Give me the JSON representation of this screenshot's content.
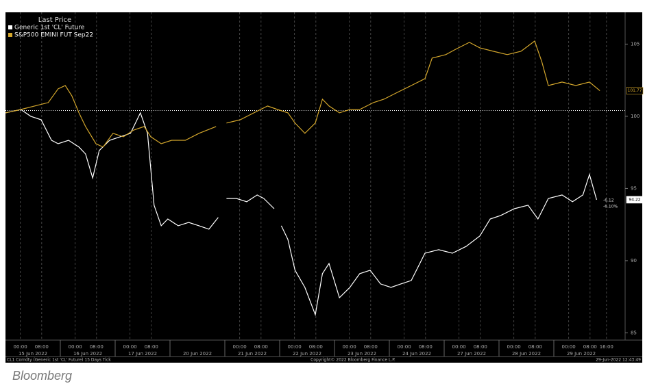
{
  "chart_data": {
    "type": "line",
    "legend_title": "Last Price",
    "series": [
      {
        "name": "Generic 1st 'CL' Future",
        "color": "#ffffff",
        "x": [
          0,
          0.28,
          0.46,
          0.65,
          0.84,
          0.96,
          1.15,
          1.34,
          1.46,
          1.59,
          1.71,
          1.9,
          2.09,
          2.28,
          2.46,
          2.59,
          2.71,
          2.84,
          2.96,
          3.15,
          3.34,
          3.53,
          3.71,
          3.88,
          3.95,
          4.03,
          4.21,
          4.4,
          4.59,
          4.71,
          4.9,
          4.96,
          5.03,
          5.15,
          5.28,
          5.46,
          5.65,
          5.78,
          5.9,
          6.09,
          6.28,
          6.46,
          6.65,
          6.84,
          7.03,
          7.21,
          7.4,
          7.65,
          7.9,
          8.15,
          8.4,
          8.65,
          8.84,
          9.03,
          9.28,
          9.53,
          9.71,
          9.9,
          10.15,
          10.34,
          10.53,
          10.65,
          10.78
        ],
        "values": [
          100.24,
          100.47,
          100,
          99.76,
          98.34,
          98.1,
          98.34,
          97.87,
          97.39,
          95.73,
          97.63,
          98.34,
          98.58,
          98.82,
          100.24,
          98.82,
          93.84,
          92.42,
          92.89,
          92.42,
          92.65,
          92.42,
          92.18,
          92.99,
          null,
          94.31,
          94.31,
          94.08,
          94.55,
          94.31,
          93.6,
          null,
          92.42,
          91.47,
          89.34,
          88.15,
          86.26,
          89.1,
          89.81,
          87.44,
          88.15,
          89.1,
          89.34,
          88.39,
          88.15,
          88.39,
          88.63,
          90.52,
          90.76,
          90.52,
          90.99,
          91.71,
          92.89,
          93.13,
          93.6,
          93.84,
          92.89,
          94.31,
          94.55,
          94.08,
          94.55,
          95.97,
          94.22
        ]
      },
      {
        "name": "S&P500 EMINI FUT Sep22",
        "color": "#d4a72c",
        "x": [
          0,
          0.28,
          0.53,
          0.78,
          0.96,
          1.09,
          1.21,
          1.34,
          1.46,
          1.65,
          1.78,
          1.96,
          2.15,
          2.34,
          2.53,
          2.65,
          2.84,
          3.03,
          3.28,
          3.53,
          3.84,
          3.95,
          4.03,
          4.28,
          4.53,
          4.78,
          4.96,
          5.15,
          5.28,
          5.46,
          5.65,
          5.78,
          5.9,
          6.09,
          6.28,
          6.46,
          6.71,
          6.9,
          7.15,
          7.4,
          7.65,
          7.78,
          8.03,
          8.21,
          8.46,
          8.65,
          8.9,
          9.15,
          9.4,
          9.65,
          9.78,
          9.9,
          10.15,
          10.4,
          10.65,
          10.84
        ],
        "values": [
          100.24,
          100.47,
          100.71,
          100.95,
          101.9,
          102.13,
          101.42,
          100.24,
          99.29,
          98.1,
          97.87,
          98.82,
          98.58,
          99.05,
          99.29,
          98.58,
          98.1,
          98.34,
          98.34,
          98.82,
          99.29,
          null,
          99.53,
          99.76,
          100.24,
          100.71,
          100.47,
          100.24,
          99.53,
          98.82,
          99.53,
          101.18,
          100.71,
          100.24,
          100.47,
          100.47,
          100.95,
          101.18,
          101.66,
          102.13,
          102.61,
          104.03,
          104.27,
          104.64,
          105.12,
          104.74,
          104.5,
          104.27,
          104.5,
          105.21,
          103.79,
          102.13,
          102.37,
          102.13,
          102.37,
          101.77
        ]
      }
    ],
    "reference_line": 100.4,
    "change_labels": [
      "-6.12",
      "-6.10%"
    ],
    "xlim": [
      0,
      11.3
    ],
    "ylim": [
      84.5,
      107.2
    ],
    "yticks": [
      85,
      90,
      95,
      100,
      105
    ],
    "xticks": [
      {
        "value": 0.27,
        "label": "00:00"
      },
      {
        "value": 0.66,
        "label": "08:00"
      },
      {
        "value": 1.27,
        "label": "00:00"
      },
      {
        "value": 1.66,
        "label": "08:00"
      },
      {
        "value": 2.27,
        "label": "00:00"
      },
      {
        "value": 2.66,
        "label": "08:00"
      },
      {
        "value": 4.27,
        "label": "00:00"
      },
      {
        "value": 4.66,
        "label": "08:00"
      },
      {
        "value": 5.27,
        "label": "00:00"
      },
      {
        "value": 5.66,
        "label": "08:00"
      },
      {
        "value": 6.27,
        "label": "00:00"
      },
      {
        "value": 6.66,
        "label": "08:00"
      },
      {
        "value": 7.27,
        "label": "00:00"
      },
      {
        "value": 7.66,
        "label": "08:00"
      },
      {
        "value": 8.27,
        "label": "00:00"
      },
      {
        "value": 8.66,
        "label": "08:00"
      },
      {
        "value": 9.27,
        "label": "00:00"
      },
      {
        "value": 9.66,
        "label": "08:00"
      },
      {
        "value": 10.27,
        "label": "00:00"
      },
      {
        "value": 10.66,
        "label": "08:00"
      },
      {
        "value": 10.96,
        "label": "16:00"
      }
    ],
    "day_labels": [
      {
        "value": 0.5,
        "label": "15 Jun 2022"
      },
      {
        "value": 1.5,
        "label": "16 Jun 2022"
      },
      {
        "value": 2.5,
        "label": "17 Jun 2022"
      },
      {
        "value": 3.5,
        "label": "20 Jun 2022"
      },
      {
        "value": 4.5,
        "label": "21 Jun 2022"
      },
      {
        "value": 5.5,
        "label": "22 Jun 2022"
      },
      {
        "value": 6.5,
        "label": "23 Jun 2022"
      },
      {
        "value": 7.5,
        "label": "24 Jun 2022"
      },
      {
        "value": 8.5,
        "label": "27 Jun 2022"
      },
      {
        "value": 9.5,
        "label": "28 Jun 2022"
      },
      {
        "value": 10.5,
        "label": "29 Jun 2022"
      }
    ],
    "grid": "x",
    "footer_left": "CL1 Comdty (Generic 1st 'CL' Future) 15 Days Tick",
    "footer_center": "Copyright© 2022 Bloomberg Finance L.P.",
    "footer_right": "29-Jun-2022 12:43:49",
    "source": "Bloomberg"
  }
}
